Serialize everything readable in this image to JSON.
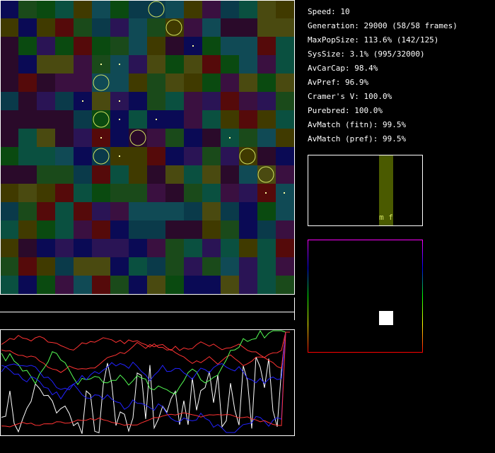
{
  "stats": [
    "Speed: 10",
    "Generation: 29000 (58/58 frames)",
    "MaxPopSize: 113.6% (142/125)",
    "SysSize: 3.1% (995/32000)",
    "AvCarCap: 98.4%",
    "AvPref: 96.9%",
    "Cramer's V: 100.0%",
    "Purebred: 100.0%",
    "AvMatch (fitn): 99.5%",
    "AvMatch (pref): 99.5%"
  ],
  "histogram": {
    "labels": "m f"
  }
}
